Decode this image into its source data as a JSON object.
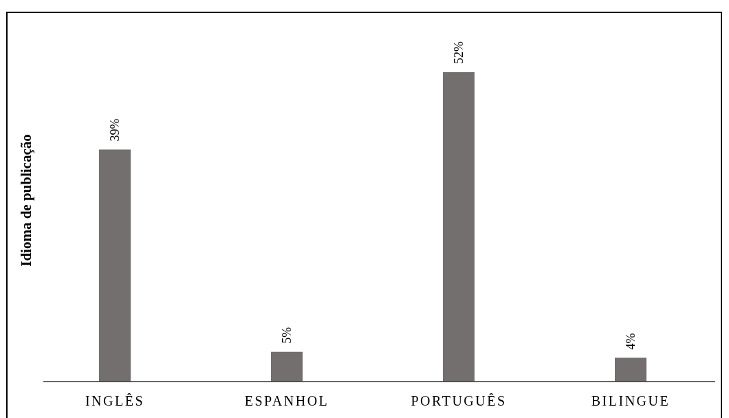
{
  "chart_data": {
    "type": "bar",
    "ylabel": "Idioma de publicação",
    "categories": [
      "INGLÊS",
      "ESPANHOL",
      "PORTUGUÊS",
      "BILINGUE"
    ],
    "values": [
      39,
      5,
      52,
      4
    ],
    "value_labels": [
      "39%",
      "5%",
      "52%",
      "4%"
    ],
    "color": "#736f6e"
  }
}
